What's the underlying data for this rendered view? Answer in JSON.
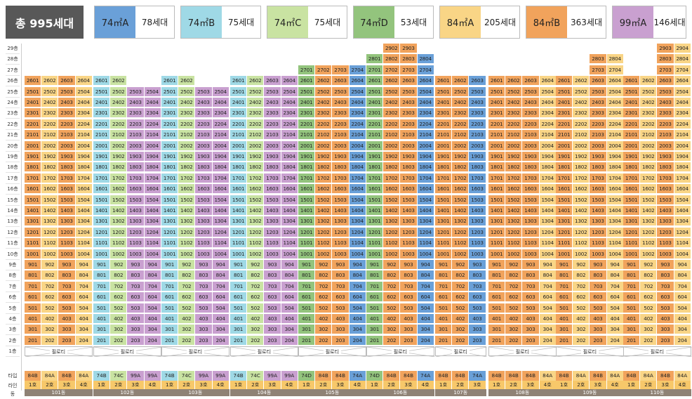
{
  "legend": {
    "total": "총 995세대",
    "items": [
      {
        "name": "74㎡A",
        "count": "78세대",
        "color": "#6aa0d8"
      },
      {
        "name": "74㎡B",
        "count": "75세대",
        "color": "#9fd9e6"
      },
      {
        "name": "74㎡C",
        "count": "75세대",
        "color": "#c9e3a2"
      },
      {
        "name": "74㎡D",
        "count": "53세대",
        "color": "#93c47d"
      },
      {
        "name": "84㎡A",
        "count": "205세대",
        "color": "#f9d586"
      },
      {
        "name": "84㎡B",
        "count": "363세대",
        "color": "#f1a35c"
      },
      {
        "name": "99㎡A",
        "count": "146세대",
        "color": "#c9a0d0"
      }
    ]
  },
  "type_colors": {
    "74A": "#6aa0d8",
    "74B": "#9fd9e6",
    "74C": "#c9e3a2",
    "74D": "#93c47d",
    "84A": "#f9d586",
    "84B": "#f1a35c",
    "99A": "#c9a0d0"
  },
  "floor_labels": [
    "29층",
    "28층",
    "27층",
    "26층",
    "25층",
    "24층",
    "23층",
    "22층",
    "21층",
    "20층",
    "19층",
    "18층",
    "17층",
    "16층",
    "15층",
    "14층",
    "13층",
    "12층",
    "11층",
    "10층",
    "9층",
    "8층",
    "7층",
    "6층",
    "5층",
    "4층",
    "3층",
    "2층",
    "1층"
  ],
  "row_labels": {
    "type": "타입",
    "line": "라인",
    "dong": "동"
  },
  "piloti_label": "필로티",
  "buildings": [
    {
      "dong": "101동",
      "lines": [
        "1호",
        "2호",
        "3호",
        "4호"
      ],
      "types": [
        "84B",
        "84A",
        "84B",
        "84A"
      ],
      "floors": [
        26,
        26,
        26,
        26
      ]
    },
    {
      "dong": "102동",
      "lines": [
        "1호",
        "2호",
        "3호",
        "4호"
      ],
      "types": [
        "74B",
        "74C",
        "99A",
        "99A"
      ],
      "floors": [
        26,
        26,
        25,
        25
      ]
    },
    {
      "dong": "103동",
      "lines": [
        "1호",
        "2호",
        "3호",
        "4호"
      ],
      "types": [
        "74B",
        "74C",
        "99A",
        "99A"
      ],
      "floors": [
        26,
        26,
        25,
        25
      ]
    },
    {
      "dong": "104동",
      "lines": [
        "1호",
        "2호",
        "3호",
        "4호"
      ],
      "types": [
        "74B",
        "74C",
        "99A",
        "99A"
      ],
      "floors": [
        26,
        26,
        26,
        26
      ]
    },
    {
      "dong": "105동",
      "lines": [
        "1호",
        "2호",
        "3호",
        "4호"
      ],
      "types": [
        "74D",
        "84B",
        "84B",
        "74A"
      ],
      "floors": [
        27,
        27,
        27,
        27
      ]
    },
    {
      "dong": "106동",
      "lines": [
        "1호",
        "2호",
        "3호",
        "4호"
      ],
      "types": [
        "74D",
        "84B",
        "84B",
        "74A"
      ],
      "floors": [
        28,
        29,
        29,
        28
      ]
    },
    {
      "dong": "107동",
      "lines": [
        "1호",
        "2호",
        "3호"
      ],
      "types": [
        "84B",
        "84B",
        "74A"
      ],
      "floors": [
        26,
        26,
        26
      ]
    },
    {
      "dong": "108동",
      "lines": [
        "1호",
        "2호",
        "3호",
        "4호"
      ],
      "types": [
        "84B",
        "84B",
        "84B",
        "84A"
      ],
      "floors": [
        26,
        26,
        26,
        26
      ]
    },
    {
      "dong": "109동",
      "lines": [
        "1호",
        "2호",
        "3호",
        "4호"
      ],
      "types": [
        "84B",
        "84A",
        "84B",
        "84A"
      ],
      "floors": [
        26,
        26,
        28,
        28
      ]
    },
    {
      "dong": "110동",
      "lines": [
        "1호",
        "2호",
        "3호",
        "4호"
      ],
      "types": [
        "84B",
        "84A",
        "84B",
        "84A"
      ],
      "floors": [
        26,
        26,
        29,
        29
      ]
    }
  ]
}
